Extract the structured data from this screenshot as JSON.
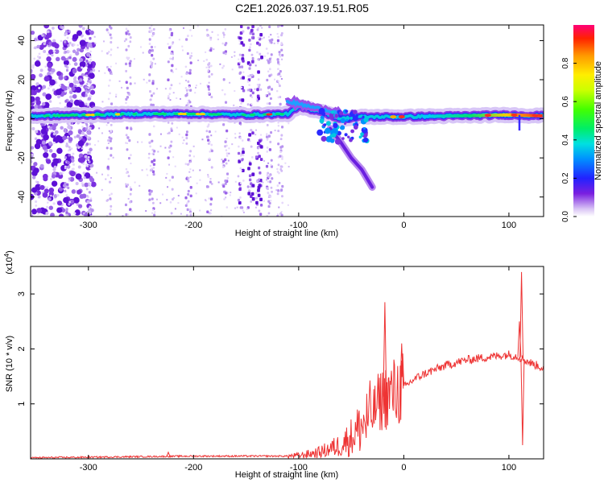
{
  "title": "C2E1.2026.037.19.51.R05",
  "chart_data": [
    {
      "type": "heatmap",
      "xlabel": "Height of straight line (km)",
      "ylabel": "Frequency (Hz)",
      "xlim": [
        -355,
        133
      ],
      "ylim": [
        -50,
        48
      ],
      "xticks": [
        -300,
        -200,
        -100,
        0,
        100
      ],
      "yticks": [
        -40,
        -20,
        0,
        20,
        40
      ],
      "colorbar": {
        "label": "Normalized spectral amplitude",
        "range": [
          0,
          1
        ],
        "ticks": [
          0.0,
          0.2,
          0.4,
          0.6,
          0.8
        ],
        "tick_labels": [
          "0.0",
          "0.2",
          "0.4",
          "0.6",
          "0.8"
        ]
      },
      "features": [
        {
          "name": "main-carrier-band",
          "x": [
            -345,
            -300,
            -250,
            -200,
            -150,
            -110,
            -100,
            -80,
            -60,
            -40,
            -20,
            0,
            50,
            100,
            133
          ],
          "y": [
            1.5,
            2,
            2.5,
            2.5,
            2,
            2.5,
            6,
            4,
            0,
            1,
            1,
            1,
            1.5,
            2,
            1.5
          ]
        },
        {
          "name": "descending-branch",
          "x": [
            -70,
            -60,
            -50,
            -40,
            -30
          ],
          "y": [
            -5,
            -12,
            -20,
            -26,
            -35
          ]
        }
      ]
    },
    {
      "type": "line",
      "xlabel": "Height of straight line (km)",
      "ylabel": "SNR (10 * v/v)",
      "y_multiplier_label": "(x10",
      "y_multiplier_exp": "4",
      "y_multiplier_close": ")",
      "xlim": [
        -355,
        133
      ],
      "ylim": [
        0,
        3.5
      ],
      "xticks": [
        -300,
        -200,
        -100,
        0,
        100
      ],
      "yticks": [
        1,
        2,
        3
      ],
      "series": [
        {
          "name": "SNR",
          "color": "#ee3333",
          "x": [
            -355,
            -300,
            -250,
            -200,
            -150,
            -110,
            -100,
            -80,
            -60,
            -50,
            -40,
            -30,
            -25,
            -20,
            -10,
            0,
            10,
            20,
            40,
            60,
            80,
            100,
            110,
            115,
            120,
            133
          ],
          "y": [
            0.02,
            0.03,
            0.04,
            0.05,
            0.05,
            0.05,
            0.06,
            0.12,
            0.25,
            0.4,
            0.6,
            0.8,
            1.0,
            1.1,
            1.2,
            1.3,
            1.45,
            1.55,
            1.7,
            1.8,
            1.85,
            1.9,
            1.85,
            1.8,
            1.75,
            1.65
          ]
        }
      ],
      "spikes": [
        {
          "x": -224,
          "y": 0.12
        },
        {
          "x": -18,
          "y": 2.85
        },
        {
          "x": -2,
          "y": 2.1
        },
        {
          "x": 110,
          "y": 2.5
        },
        {
          "x": 112,
          "y": 3.4
        },
        {
          "x": 113,
          "y": 0.25
        }
      ]
    }
  ]
}
